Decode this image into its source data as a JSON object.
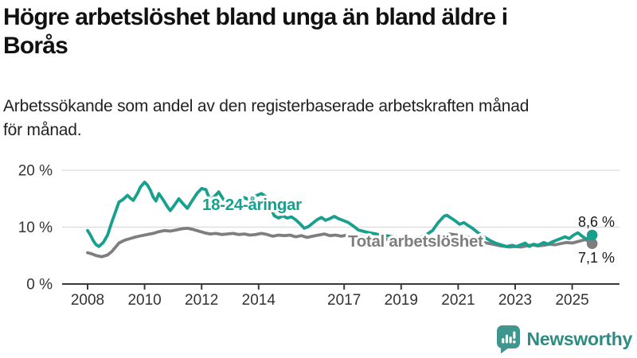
{
  "header": {
    "title_lines": [
      "Högre arbetslöshet bland unga än bland äldre i",
      "Borås"
    ],
    "subtitle_lines": [
      "Arbetssökande som andel av den registerbaserade arbetskraften månad",
      "för månad."
    ]
  },
  "branding": {
    "logo_text": "Newsworthy",
    "icon": "bar-chart-speech-bubble"
  },
  "colors": {
    "young_series": "#17a08e",
    "total_series": "#7e7e7e",
    "brand_teal": "#3f968e",
    "axis_text": "#333333",
    "grid_line": "#dcdcdc",
    "axis_line": "#3a3a3a",
    "end_label_text": "#191919"
  },
  "chart_data": {
    "type": "line",
    "title": "Högre arbetslöshet bland unga än bland äldre i Borås",
    "subtitle": "Arbetssökande som andel av den registerbaserade arbetskraften månad för månad.",
    "unit": "%",
    "xlim": [
      2007.1,
      2026.6
    ],
    "ylim": [
      0,
      20
    ],
    "x_ticks": [
      2008,
      2010,
      2012,
      2014,
      2017,
      2019,
      2021,
      2023,
      2025
    ],
    "y_ticks": [
      {
        "value": 0,
        "label": "0 %"
      },
      {
        "value": 10,
        "label": "10 %"
      },
      {
        "value": 20,
        "label": "20 %"
      }
    ],
    "grid": "horizontal",
    "legend": "inline-labels",
    "series": [
      {
        "name": "18-24-åringar",
        "color": "#17a08e",
        "end_value": 8.6,
        "end_label": "8,6 %",
        "points": [
          [
            2008.0,
            9.4
          ],
          [
            2008.1,
            8.6
          ],
          [
            2008.2,
            7.6
          ],
          [
            2008.3,
            6.9
          ],
          [
            2008.4,
            6.6
          ],
          [
            2008.55,
            7.3
          ],
          [
            2008.7,
            8.6
          ],
          [
            2008.85,
            10.9
          ],
          [
            2009.0,
            13.0
          ],
          [
            2009.1,
            14.4
          ],
          [
            2009.25,
            14.9
          ],
          [
            2009.4,
            15.6
          ],
          [
            2009.5,
            15.1
          ],
          [
            2009.6,
            14.7
          ],
          [
            2009.75,
            15.9
          ],
          [
            2009.85,
            17.0
          ],
          [
            2010.0,
            17.9
          ],
          [
            2010.1,
            17.4
          ],
          [
            2010.2,
            16.5
          ],
          [
            2010.3,
            15.3
          ],
          [
            2010.4,
            14.6
          ],
          [
            2010.5,
            15.9
          ],
          [
            2010.65,
            14.8
          ],
          [
            2010.8,
            13.6
          ],
          [
            2010.9,
            12.9
          ],
          [
            2011.05,
            13.9
          ],
          [
            2011.2,
            15.0
          ],
          [
            2011.35,
            14.1
          ],
          [
            2011.5,
            13.3
          ],
          [
            2011.7,
            14.9
          ],
          [
            2011.85,
            16.0
          ],
          [
            2012.0,
            16.8
          ],
          [
            2012.15,
            16.6
          ],
          [
            2012.3,
            14.7
          ],
          [
            2012.45,
            15.4
          ],
          [
            2012.6,
            16.2
          ],
          [
            2012.75,
            15.0
          ],
          [
            2012.9,
            14.1
          ],
          [
            2013.05,
            13.0
          ],
          [
            2013.2,
            13.5
          ],
          [
            2013.35,
            14.3
          ],
          [
            2013.5,
            15.2
          ],
          [
            2013.65,
            14.8
          ],
          [
            2013.8,
            15.3
          ],
          [
            2013.95,
            15.6
          ],
          [
            2014.1,
            15.9
          ],
          [
            2014.25,
            15.4
          ],
          [
            2014.4,
            13.6
          ],
          [
            2014.55,
            12.0
          ],
          [
            2014.7,
            11.6
          ],
          [
            2014.85,
            12.0
          ],
          [
            2015.0,
            11.6
          ],
          [
            2015.15,
            11.8
          ],
          [
            2015.3,
            11.3
          ],
          [
            2015.45,
            10.6
          ],
          [
            2015.6,
            9.8
          ],
          [
            2015.75,
            10.1
          ],
          [
            2015.9,
            10.7
          ],
          [
            2016.05,
            11.3
          ],
          [
            2016.2,
            11.7
          ],
          [
            2016.35,
            11.2
          ],
          [
            2016.5,
            11.5
          ],
          [
            2016.65,
            11.9
          ],
          [
            2016.8,
            11.5
          ],
          [
            2016.95,
            11.2
          ],
          [
            2017.15,
            10.8
          ],
          [
            2017.35,
            10.1
          ],
          [
            2017.5,
            9.5
          ],
          [
            2017.8,
            9.1
          ],
          [
            2018.2,
            8.7
          ],
          [
            2018.6,
            8.4
          ],
          [
            2019.0,
            8.1
          ],
          [
            2019.4,
            7.9
          ],
          [
            2019.8,
            8.4
          ],
          [
            2020.1,
            9.4
          ],
          [
            2020.3,
            10.8
          ],
          [
            2020.5,
            11.9
          ],
          [
            2020.6,
            12.1
          ],
          [
            2020.75,
            11.6
          ],
          [
            2020.9,
            11.1
          ],
          [
            2021.05,
            10.5
          ],
          [
            2021.2,
            10.8
          ],
          [
            2021.35,
            10.3
          ],
          [
            2021.5,
            9.8
          ],
          [
            2021.7,
            9.0
          ],
          [
            2021.9,
            8.3
          ],
          [
            2022.1,
            7.7
          ],
          [
            2022.3,
            7.2
          ],
          [
            2022.5,
            6.9
          ],
          [
            2022.7,
            6.6
          ],
          [
            2022.9,
            6.8
          ],
          [
            2023.05,
            6.6
          ],
          [
            2023.2,
            6.9
          ],
          [
            2023.35,
            7.2
          ],
          [
            2023.5,
            6.6
          ],
          [
            2023.65,
            7.0
          ],
          [
            2023.8,
            6.8
          ],
          [
            2024.0,
            7.3
          ],
          [
            2024.15,
            7.0
          ],
          [
            2024.3,
            7.4
          ],
          [
            2024.45,
            7.7
          ],
          [
            2024.6,
            8.0
          ],
          [
            2024.75,
            8.3
          ],
          [
            2024.9,
            8.0
          ],
          [
            2025.05,
            8.6
          ],
          [
            2025.2,
            9.0
          ],
          [
            2025.35,
            8.4
          ],
          [
            2025.5,
            7.9
          ],
          [
            2025.7,
            8.6
          ]
        ]
      },
      {
        "name": "Total arbetslöshet",
        "color": "#7e7e7e",
        "end_value": 7.1,
        "end_label": "7,1 %",
        "points": [
          [
            2008.0,
            5.5
          ],
          [
            2008.15,
            5.3
          ],
          [
            2008.3,
            5.0
          ],
          [
            2008.5,
            4.8
          ],
          [
            2008.7,
            5.1
          ],
          [
            2008.85,
            5.7
          ],
          [
            2009.0,
            6.6
          ],
          [
            2009.1,
            7.2
          ],
          [
            2009.3,
            7.7
          ],
          [
            2009.5,
            8.0
          ],
          [
            2009.7,
            8.3
          ],
          [
            2009.9,
            8.5
          ],
          [
            2010.1,
            8.7
          ],
          [
            2010.3,
            8.9
          ],
          [
            2010.5,
            9.2
          ],
          [
            2010.7,
            9.4
          ],
          [
            2010.9,
            9.3
          ],
          [
            2011.1,
            9.5
          ],
          [
            2011.3,
            9.7
          ],
          [
            2011.5,
            9.8
          ],
          [
            2011.7,
            9.6
          ],
          [
            2011.9,
            9.3
          ],
          [
            2012.1,
            9.0
          ],
          [
            2012.3,
            8.8
          ],
          [
            2012.5,
            8.9
          ],
          [
            2012.7,
            8.7
          ],
          [
            2012.9,
            8.8
          ],
          [
            2013.1,
            8.9
          ],
          [
            2013.3,
            8.7
          ],
          [
            2013.5,
            8.8
          ],
          [
            2013.7,
            8.6
          ],
          [
            2013.9,
            8.7
          ],
          [
            2014.1,
            8.9
          ],
          [
            2014.3,
            8.7
          ],
          [
            2014.5,
            8.4
          ],
          [
            2014.7,
            8.6
          ],
          [
            2014.9,
            8.5
          ],
          [
            2015.1,
            8.6
          ],
          [
            2015.3,
            8.3
          ],
          [
            2015.5,
            8.5
          ],
          [
            2015.7,
            8.2
          ],
          [
            2015.9,
            8.4
          ],
          [
            2016.1,
            8.6
          ],
          [
            2016.3,
            8.8
          ],
          [
            2016.5,
            8.5
          ],
          [
            2016.7,
            8.6
          ],
          [
            2016.9,
            8.4
          ],
          [
            2017.1,
            8.6
          ],
          [
            2017.3,
            8.5
          ],
          [
            2017.5,
            8.4
          ],
          [
            2017.8,
            8.2
          ],
          [
            2018.2,
            8.0
          ],
          [
            2018.6,
            7.8
          ],
          [
            2019.0,
            7.6
          ],
          [
            2019.4,
            7.5
          ],
          [
            2019.8,
            7.7
          ],
          [
            2020.1,
            8.1
          ],
          [
            2020.4,
            8.5
          ],
          [
            2020.7,
            8.8
          ],
          [
            2021.0,
            8.6
          ],
          [
            2021.3,
            8.3
          ],
          [
            2021.6,
            7.8
          ],
          [
            2021.9,
            7.3
          ],
          [
            2022.2,
            7.0
          ],
          [
            2022.5,
            6.7
          ],
          [
            2022.8,
            6.5
          ],
          [
            2023.0,
            6.6
          ],
          [
            2023.2,
            6.5
          ],
          [
            2023.4,
            6.7
          ],
          [
            2023.6,
            6.9
          ],
          [
            2023.8,
            6.7
          ],
          [
            2024.0,
            6.8
          ],
          [
            2024.2,
            7.0
          ],
          [
            2024.4,
            6.9
          ],
          [
            2024.6,
            7.1
          ],
          [
            2024.8,
            7.3
          ],
          [
            2025.0,
            7.2
          ],
          [
            2025.15,
            7.4
          ],
          [
            2025.3,
            7.6
          ],
          [
            2025.45,
            7.8
          ],
          [
            2025.6,
            7.5
          ],
          [
            2025.7,
            7.1
          ]
        ]
      }
    ]
  }
}
